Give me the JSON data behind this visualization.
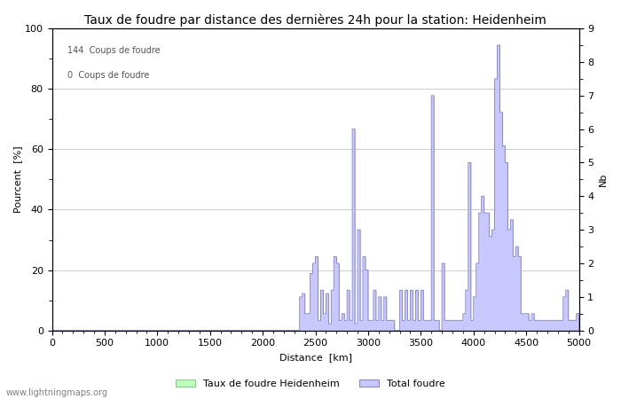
{
  "title": "Taux de foudre par distance des dernières 24h pour la station: Heidenheim",
  "xlabel": "Distance  [km]",
  "ylabel_left": "Pourcent  [%]",
  "ylabel_right": "Nb",
  "annotation1": "144  Coups de foudre",
  "annotation2": "0  Coups de foudre",
  "watermark": "www.lightningmaps.org",
  "legend_label1": "Taux de foudre Heidenheim",
  "legend_label2": "Total foudre",
  "xlim": [
    0,
    5000
  ],
  "ylim_left": [
    0,
    100
  ],
  "ylim_right": [
    0.0,
    9.0
  ],
  "xticks": [
    0,
    500,
    1000,
    1500,
    2000,
    2500,
    3000,
    3500,
    4000,
    4500,
    5000
  ],
  "yticks_left": [
    0,
    20,
    40,
    60,
    80,
    100
  ],
  "yticks_right": [
    0.0,
    1.0,
    2.0,
    3.0,
    4.0,
    5.0,
    6.0,
    7.0,
    8.0,
    9.0
  ],
  "color_total": "#c8c8ff",
  "color_total_line": "#8888cc",
  "color_rate": "#bbffbb",
  "color_rate_line": "#88cc88",
  "bg_color": "#ffffff",
  "grid_color": "#cccccc",
  "title_fontsize": 10,
  "label_fontsize": 8,
  "tick_fontsize": 8,
  "legend_fontsize": 8,
  "bin_size_km": 25,
  "total_bins": [
    [
      2350,
      1.0
    ],
    [
      2375,
      1.1
    ],
    [
      2400,
      0.5
    ],
    [
      2425,
      0.5
    ],
    [
      2450,
      1.7
    ],
    [
      2475,
      2.0
    ],
    [
      2500,
      2.2
    ],
    [
      2525,
      0.3
    ],
    [
      2550,
      1.2
    ],
    [
      2575,
      0.5
    ],
    [
      2600,
      1.1
    ],
    [
      2625,
      0.2
    ],
    [
      2650,
      1.2
    ],
    [
      2675,
      2.2
    ],
    [
      2700,
      2.0
    ],
    [
      2725,
      0.3
    ],
    [
      2750,
      0.5
    ],
    [
      2775,
      0.3
    ],
    [
      2800,
      1.2
    ],
    [
      2825,
      0.3
    ],
    [
      2850,
      6.0
    ],
    [
      2875,
      0.2
    ],
    [
      2900,
      3.0
    ],
    [
      2925,
      0.3
    ],
    [
      2950,
      2.2
    ],
    [
      2975,
      1.8
    ],
    [
      3000,
      0.3
    ],
    [
      3025,
      0.3
    ],
    [
      3050,
      1.2
    ],
    [
      3075,
      0.3
    ],
    [
      3100,
      1.0
    ],
    [
      3125,
      0.3
    ],
    [
      3150,
      1.0
    ],
    [
      3175,
      0.3
    ],
    [
      3200,
      0.3
    ],
    [
      3225,
      0.3
    ],
    [
      3300,
      1.2
    ],
    [
      3325,
      0.3
    ],
    [
      3350,
      1.2
    ],
    [
      3375,
      0.3
    ],
    [
      3400,
      1.2
    ],
    [
      3425,
      0.3
    ],
    [
      3450,
      1.2
    ],
    [
      3475,
      0.3
    ],
    [
      3500,
      1.2
    ],
    [
      3525,
      0.3
    ],
    [
      3550,
      0.3
    ],
    [
      3575,
      0.3
    ],
    [
      3600,
      7.0
    ],
    [
      3625,
      0.3
    ],
    [
      3650,
      0.3
    ],
    [
      3700,
      2.0
    ],
    [
      3725,
      0.3
    ],
    [
      3750,
      0.3
    ],
    [
      3775,
      0.3
    ],
    [
      3800,
      0.3
    ],
    [
      3825,
      0.3
    ],
    [
      3850,
      0.3
    ],
    [
      3875,
      0.3
    ],
    [
      3900,
      0.5
    ],
    [
      3925,
      1.2
    ],
    [
      3950,
      5.0
    ],
    [
      3975,
      0.3
    ],
    [
      4000,
      1.0
    ],
    [
      4025,
      2.0
    ],
    [
      4050,
      3.5
    ],
    [
      4075,
      4.0
    ],
    [
      4100,
      3.5
    ],
    [
      4125,
      3.5
    ],
    [
      4150,
      2.8
    ],
    [
      4175,
      3.0
    ],
    [
      4200,
      7.5
    ],
    [
      4225,
      8.5
    ],
    [
      4250,
      6.5
    ],
    [
      4275,
      5.5
    ],
    [
      4300,
      5.0
    ],
    [
      4325,
      3.0
    ],
    [
      4350,
      3.3
    ],
    [
      4375,
      2.2
    ],
    [
      4400,
      2.5
    ],
    [
      4425,
      2.2
    ],
    [
      4450,
      0.5
    ],
    [
      4475,
      0.5
    ],
    [
      4500,
      0.5
    ],
    [
      4525,
      0.3
    ],
    [
      4550,
      0.5
    ],
    [
      4575,
      0.3
    ],
    [
      4600,
      0.3
    ],
    [
      4625,
      0.3
    ],
    [
      4650,
      0.3
    ],
    [
      4675,
      0.3
    ],
    [
      4700,
      0.3
    ],
    [
      4725,
      0.3
    ],
    [
      4750,
      0.3
    ],
    [
      4775,
      0.3
    ],
    [
      4800,
      0.3
    ],
    [
      4825,
      0.3
    ],
    [
      4850,
      1.0
    ],
    [
      4875,
      1.2
    ],
    [
      4900,
      0.3
    ],
    [
      4925,
      0.3
    ],
    [
      4950,
      0.3
    ],
    [
      4975,
      0.5
    ]
  ]
}
